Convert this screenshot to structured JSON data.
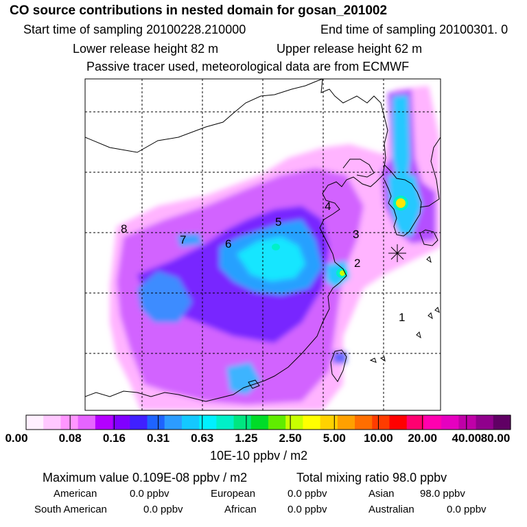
{
  "header": {
    "title": "CO  source contributions in nested domain for gosan_201002",
    "start_label": "Start time of sampling 20100228.210000",
    "end_label": "End time of sampling 20100301.     0",
    "lower_label": "Lower release height   82 m",
    "upper_label": "Upper release height   62 m",
    "tracer_note": "Passive tracer used, meteorological data are from ECMWF"
  },
  "chart_data": {
    "type": "heatmap",
    "title": "CO  source contributions in nested domain for gosan_201002",
    "region_labels": [
      "1",
      "2",
      "3",
      "4",
      "5",
      "6",
      "7",
      "8"
    ],
    "colorbar": {
      "unit": "10E-10 ppbv / m2",
      "tick_labels": [
        "0.00",
        "0.08",
        "0.16",
        "0.31",
        "0.63",
        "1.25",
        "2.50",
        "5.00",
        "10.00",
        "20.00",
        "40.00",
        "80.00"
      ],
      "colors": [
        "#fff0ff",
        "#ffc8ff",
        "#ff96ff",
        "#e664ff",
        "#b400ff",
        "#8000ff",
        "#4020ff",
        "#1e64ff",
        "#2c9cff",
        "#14c8ff",
        "#00f0ff",
        "#00f0c8",
        "#00e680",
        "#00dc28",
        "#60ec00",
        "#c8ff00",
        "#ffff00",
        "#ffd200",
        "#ffa000",
        "#ff6e00",
        "#ff3c00",
        "#ff0000",
        "#ff0070",
        "#ff00b0",
        "#e600c0",
        "#c000a8",
        "#90008c",
        "#600064"
      ]
    },
    "maximum_value": "Maximum value  0.109E-08 ppbv / m2",
    "total_mixing_ratio": "Total mixing ratio       98.0 ppbv"
  },
  "sources": [
    {
      "name": "American",
      "value": "0.0 ppbv"
    },
    {
      "name": "European",
      "value": "0.0 ppbv"
    },
    {
      "name": "Asian",
      "value": "98.0 ppbv"
    },
    {
      "name": "South American",
      "value": "0.0 ppbv"
    },
    {
      "name": "African",
      "value": "0.0 ppbv"
    },
    {
      "name": "Australian",
      "value": "0.0 ppbv"
    }
  ],
  "colors": {
    "receptor_marker": "#000000",
    "coastline": "#000000"
  }
}
